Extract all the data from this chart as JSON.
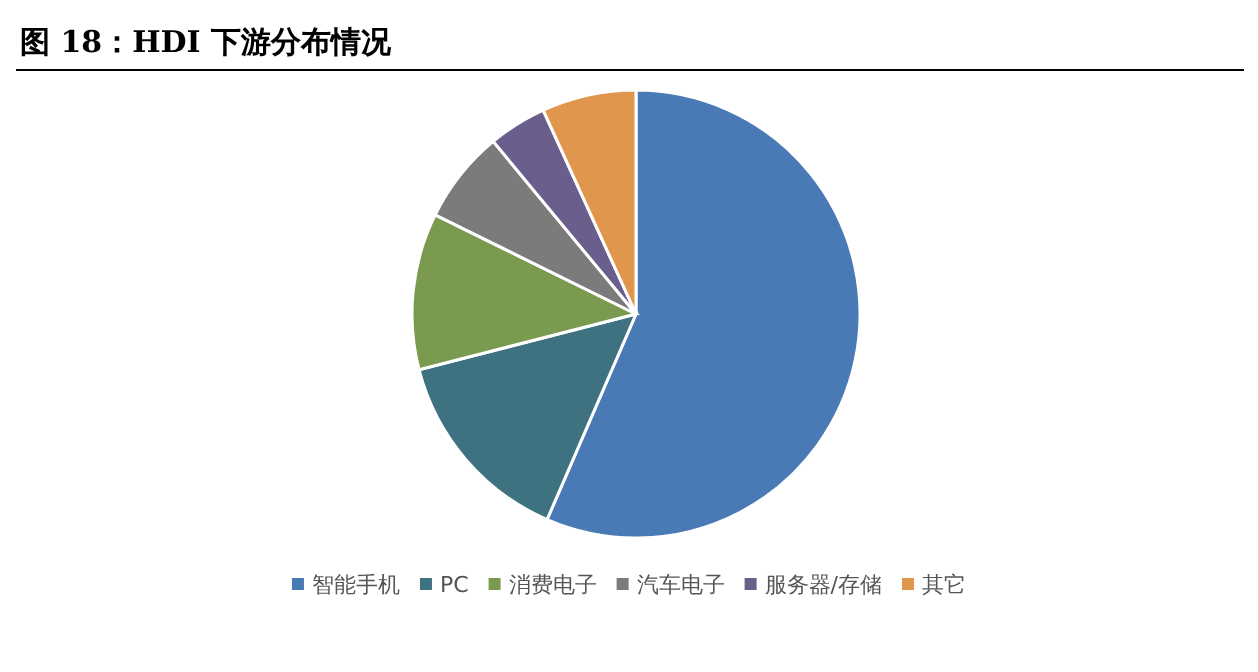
{
  "chart_data": {
    "type": "pie",
    "title": "图 18：HDI 下游分布情况",
    "categories": [
      "智能手机",
      "PC",
      "消费电子",
      "汽车电子",
      "服务器/存储",
      "其它"
    ],
    "values": [
      56.5,
      14.5,
      11.3,
      6.7,
      4.2,
      6.8
    ],
    "colors": [
      "#4a7ab5",
      "#3f7280",
      "#7a9a50",
      "#7b7b7b",
      "#6a5f8c",
      "#e0964c"
    ],
    "legend": "bottom"
  }
}
